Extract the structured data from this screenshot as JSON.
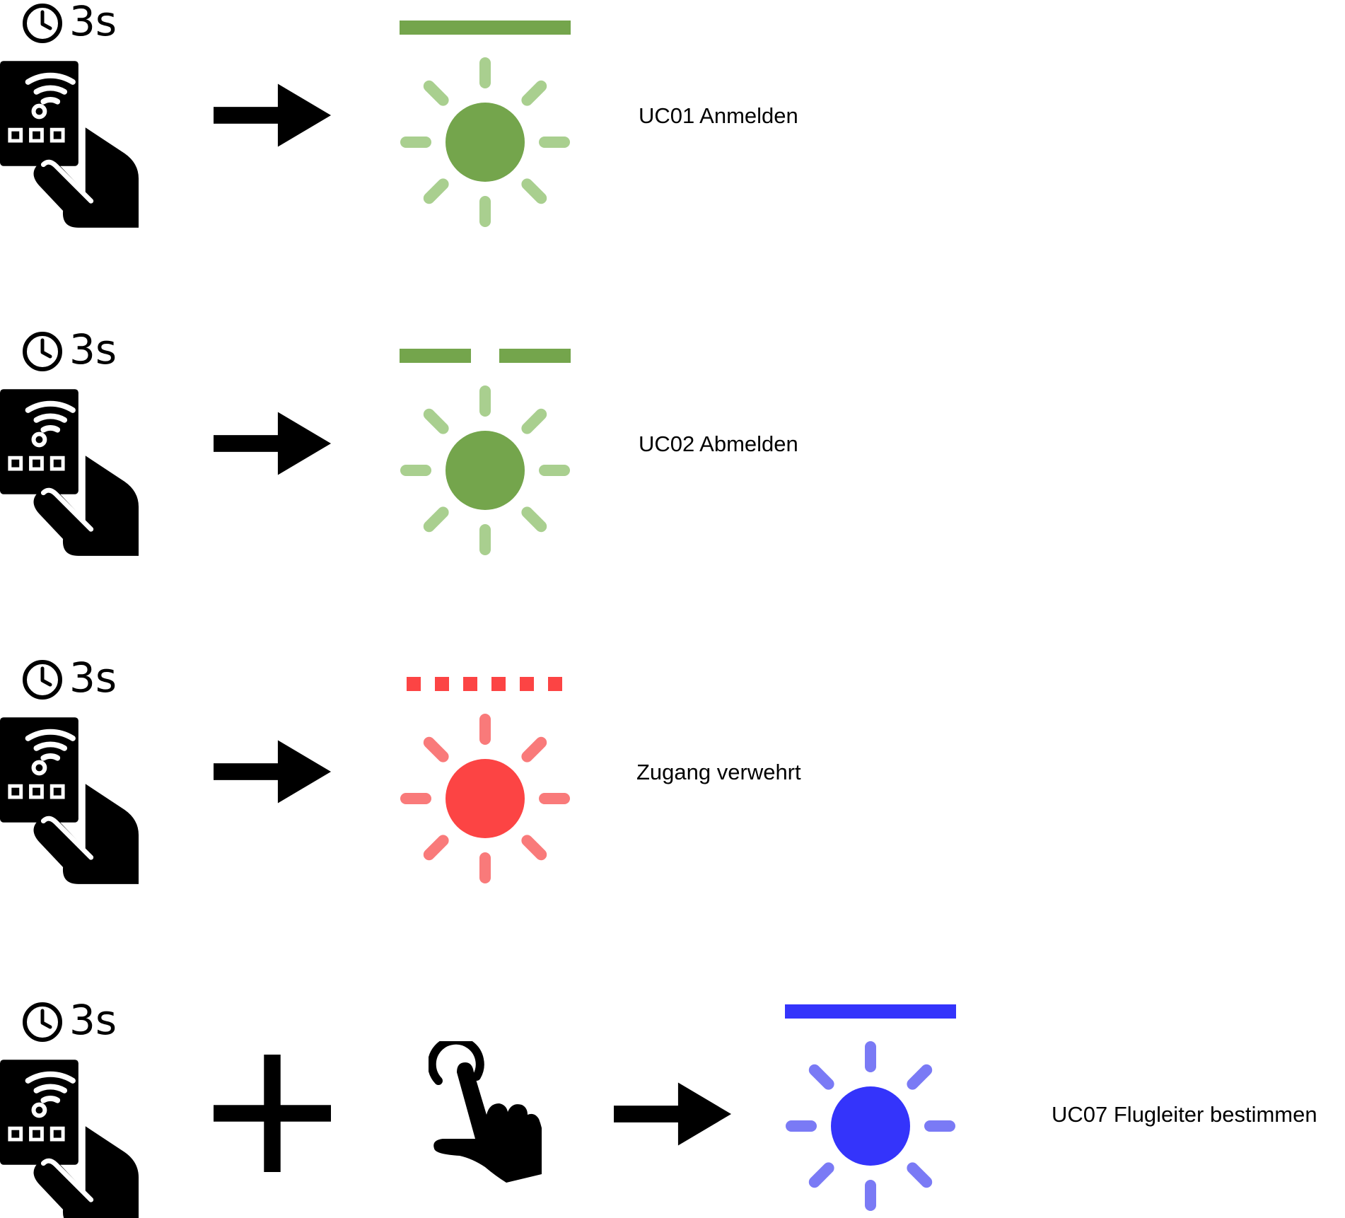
{
  "rows": [
    {
      "id": "uc01",
      "duration": "3s",
      "combo": false,
      "signal": "solid",
      "color": "#74a54c",
      "ray_color": "#a9cf8f",
      "label": "UC01 Anmelden"
    },
    {
      "id": "uc02",
      "duration": "3s",
      "combo": false,
      "signal": "split",
      "color": "#74a54c",
      "ray_color": "#a9cf8f",
      "label": "UC02 Abmelden"
    },
    {
      "id": "denied",
      "duration": "3s",
      "combo": false,
      "signal": "dotted",
      "color": "#fc4444",
      "ray_color": "#f97a7a",
      "label": "Zugang verwehrt"
    },
    {
      "id": "uc07",
      "duration": "3s",
      "combo": true,
      "signal": "solid",
      "color": "#3434fb",
      "ray_color": "#7a7af5",
      "label": "UC07 Flugleiter bestimmen"
    }
  ],
  "icons": {
    "timer": "clock-icon",
    "remote": "remote-hand-icon",
    "arrow": "arrow-right-icon",
    "plus": "plus-icon",
    "tap": "tap-hand-icon",
    "light": "light-icon"
  }
}
